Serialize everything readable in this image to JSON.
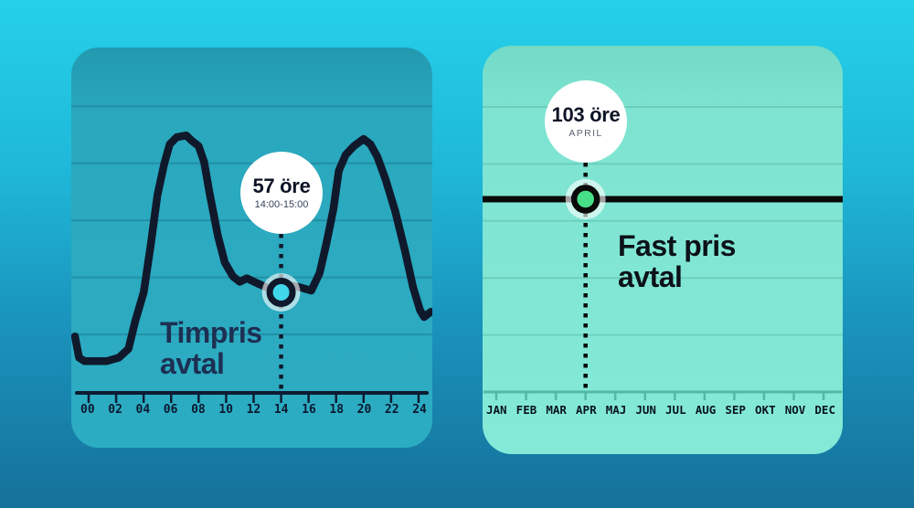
{
  "chart_data": [
    {
      "type": "line",
      "title": "Timpris avtal",
      "title_lines": [
        "Timpris",
        "avtal"
      ],
      "x_unit": "hour of day",
      "y_unit": "öre/kWh",
      "x_tick_labels": [
        "00",
        "02",
        "04",
        "06",
        "08",
        "10",
        "12",
        "14",
        "16",
        "18",
        "20",
        "22",
        "24"
      ],
      "ylim": [
        0,
        165
      ],
      "grid": true,
      "legend": "none",
      "series": [
        {
          "name": "Timpris",
          "points": [
            [
              -1.0,
              32
            ],
            [
              -0.7,
              20
            ],
            [
              -0.3,
              18
            ],
            [
              1.3,
              18
            ],
            [
              2.2,
              20
            ],
            [
              2.9,
              25
            ],
            [
              3.4,
              41
            ],
            [
              4.0,
              57
            ],
            [
              4.5,
              83
            ],
            [
              5.0,
              112
            ],
            [
              5.5,
              130
            ],
            [
              5.9,
              141
            ],
            [
              6.4,
              145
            ],
            [
              7.1,
              146
            ],
            [
              7.5,
              143
            ],
            [
              8.0,
              140
            ],
            [
              8.4,
              131
            ],
            [
              8.8,
              113
            ],
            [
              9.4,
              89
            ],
            [
              9.9,
              74
            ],
            [
              10.5,
              66
            ],
            [
              11.0,
              63
            ],
            [
              11.5,
              65
            ],
            [
              12.3,
              62
            ],
            [
              13.2,
              59
            ],
            [
              14.0,
              57
            ],
            [
              14.6,
              61
            ],
            [
              15.3,
              60
            ],
            [
              16.2,
              58
            ],
            [
              16.8,
              68
            ],
            [
              17.3,
              85
            ],
            [
              17.8,
              104
            ],
            [
              18.2,
              126
            ],
            [
              18.7,
              135
            ],
            [
              19.3,
              140
            ],
            [
              20.0,
              144
            ],
            [
              20.5,
              141
            ],
            [
              21.0,
              134
            ],
            [
              21.6,
              121
            ],
            [
              22.3,
              103
            ],
            [
              23.0,
              81
            ],
            [
              23.6,
              60
            ],
            [
              24.1,
              47
            ],
            [
              24.4,
              43
            ],
            [
              24.9,
              46
            ]
          ]
        }
      ],
      "highlight": {
        "hour": 14,
        "value": 57,
        "label": "57 öre",
        "sublabel": "14:00-15:00"
      }
    },
    {
      "type": "line",
      "title": "Fast pris avtal",
      "title_lines": [
        "Fast pris",
        "avtal"
      ],
      "x_unit": "month",
      "y_unit": "öre/kWh",
      "categories": [
        "JAN",
        "FEB",
        "MAR",
        "APR",
        "MAJ",
        "JUN",
        "JUL",
        "AUG",
        "SEP",
        "OKT",
        "NOV",
        "DEC"
      ],
      "values": [
        103,
        103,
        103,
        103,
        103,
        103,
        103,
        103,
        103,
        103,
        103,
        103
      ],
      "ylim": [
        0,
        185
      ],
      "grid": true,
      "legend": "none",
      "highlight": {
        "month": "APR",
        "month_index": 3,
        "value": 103,
        "label": "103 öre",
        "sublabel": "APRIL"
      }
    }
  ],
  "colors": {
    "background_top": "#25d0ea",
    "background_bottom": "#15719a",
    "left_panel": "#2aa8be",
    "left_grid": "rgba(4,40,60,0.20)",
    "left_line": "#10192b",
    "left_axis": "#0d1c33",
    "left_marker_fill": "#41d7ea",
    "left_title": "#1d2f52",
    "right_panel": "#80e6d2",
    "right_grid": "rgba(0,80,66,0.15)",
    "right_line": "#0a0a0a",
    "right_axis": "#53b8a5",
    "right_marker_fill": "#47e089",
    "right_title": "#0c1118",
    "bubble_bg": "#ffffff",
    "bubble_text": "#0d1426",
    "marker_halo": "rgba(255,255,255,0.62)"
  }
}
